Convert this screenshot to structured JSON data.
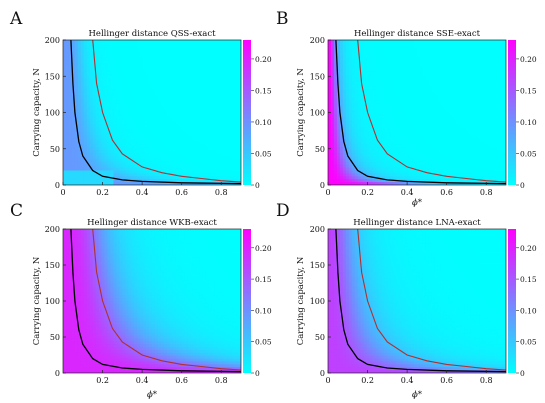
{
  "colorbar": {
    "ticks": [
      "0",
      "0.05",
      "0.10",
      "0.15",
      "0.20"
    ],
    "tick_values": [
      0,
      0.05,
      0.1,
      0.15,
      0.2
    ],
    "range": [
      0,
      0.23
    ],
    "color_low": "#00FFFF",
    "color_high": "#FF00FF"
  },
  "curve_colors": {
    "black": "#000000",
    "red": "#b03030"
  },
  "chart_data": [
    {
      "type": "heatmap",
      "panel": "A",
      "title": "Hellinger distance QSS-exact",
      "xlabel": "",
      "ylabel": "Carrying capacity, N",
      "xlim": [
        0,
        0.9
      ],
      "ylim": [
        0,
        200
      ],
      "xticks": [
        "0",
        "0.2",
        "0.4",
        "0.6",
        "0.8"
      ],
      "xtick_values": [
        0,
        0.2,
        0.4,
        0.6,
        0.8
      ],
      "yticks": [
        "0",
        "50",
        "100",
        "150",
        "200"
      ],
      "ytick_values": [
        0,
        50,
        100,
        150,
        200
      ],
      "curves": [
        {
          "color": "black",
          "x": [
            0.04,
            0.05,
            0.06,
            0.08,
            0.1,
            0.15,
            0.2,
            0.3,
            0.4,
            0.6,
            0.9
          ],
          "y": [
            200,
            140,
            100,
            60,
            40,
            20,
            12,
            7,
            5,
            3,
            2
          ]
        },
        {
          "color": "red",
          "x": [
            0.15,
            0.17,
            0.2,
            0.25,
            0.3,
            0.4,
            0.5,
            0.6,
            0.7,
            0.8,
            0.9
          ],
          "y": [
            200,
            140,
            100,
            62,
            43,
            25,
            17,
            12,
            9,
            6,
            4
          ]
        }
      ]
    },
    {
      "type": "heatmap",
      "panel": "B",
      "title": "Hellinger distance SSE-exact",
      "xlabel": "ϕ*",
      "ylabel": "Carrying capacity, N",
      "xlim": [
        0,
        0.9
      ],
      "ylim": [
        0,
        200
      ],
      "xticks": [
        "0",
        "0.2",
        "0.4",
        "0.6",
        "0.8"
      ],
      "xtick_values": [
        0,
        0.2,
        0.4,
        0.6,
        0.8
      ],
      "yticks": [
        "0",
        "50",
        "100",
        "150",
        "200"
      ],
      "ytick_values": [
        0,
        50,
        100,
        150,
        200
      ],
      "curves": [
        {
          "color": "black",
          "x": [
            0.04,
            0.05,
            0.06,
            0.08,
            0.1,
            0.15,
            0.2,
            0.3,
            0.4,
            0.6,
            0.9
          ],
          "y": [
            200,
            140,
            100,
            60,
            40,
            20,
            12,
            7,
            5,
            3,
            2
          ]
        },
        {
          "color": "red",
          "x": [
            0.15,
            0.17,
            0.2,
            0.25,
            0.3,
            0.4,
            0.5,
            0.6,
            0.7,
            0.8,
            0.9
          ],
          "y": [
            200,
            140,
            100,
            62,
            43,
            25,
            17,
            12,
            9,
            6,
            4
          ]
        }
      ]
    },
    {
      "type": "heatmap",
      "panel": "C",
      "title": "Hellinger distance WKB-exact",
      "xlabel": "ϕ*",
      "ylabel": "Carrying capacity, N",
      "xlim": [
        0,
        0.9
      ],
      "ylim": [
        0,
        200
      ],
      "xticks": [
        "0.2",
        "0.4",
        "0.6",
        "0.8"
      ],
      "xtick_values": [
        0.2,
        0.4,
        0.6,
        0.8
      ],
      "yticks": [
        "0",
        "50",
        "100",
        "150",
        "200"
      ],
      "ytick_values": [
        0,
        50,
        100,
        150,
        200
      ],
      "curves": [
        {
          "color": "black",
          "x": [
            0.04,
            0.05,
            0.06,
            0.08,
            0.1,
            0.15,
            0.2,
            0.3,
            0.4,
            0.6,
            0.9
          ],
          "y": [
            200,
            140,
            100,
            60,
            40,
            20,
            12,
            7,
            5,
            3,
            2
          ]
        },
        {
          "color": "red",
          "x": [
            0.15,
            0.17,
            0.2,
            0.25,
            0.3,
            0.4,
            0.5,
            0.6,
            0.7,
            0.8,
            0.9
          ],
          "y": [
            200,
            140,
            100,
            62,
            43,
            25,
            17,
            12,
            9,
            6,
            4
          ]
        }
      ]
    },
    {
      "type": "heatmap",
      "panel": "D",
      "title": "Hellinger distance LNA-exact",
      "xlabel": "ϕ*",
      "ylabel": "Carrying capacity, N",
      "xlim": [
        0,
        0.9
      ],
      "ylim": [
        0,
        200
      ],
      "xticks": [
        "0",
        "0.2",
        "0.4",
        "0.6",
        "0.8"
      ],
      "xtick_values": [
        0,
        0.2,
        0.4,
        0.6,
        0.8
      ],
      "yticks": [
        "0",
        "50",
        "100",
        "150",
        "200"
      ],
      "ytick_values": [
        0,
        50,
        100,
        150,
        200
      ],
      "curves": [
        {
          "color": "black",
          "x": [
            0.04,
            0.05,
            0.06,
            0.08,
            0.1,
            0.15,
            0.2,
            0.3,
            0.4,
            0.6,
            0.9
          ],
          "y": [
            200,
            140,
            100,
            60,
            40,
            20,
            12,
            7,
            5,
            3,
            2
          ]
        },
        {
          "color": "red",
          "x": [
            0.15,
            0.17,
            0.2,
            0.25,
            0.3,
            0.4,
            0.5,
            0.6,
            0.7,
            0.8,
            0.9
          ],
          "y": [
            200,
            140,
            100,
            62,
            43,
            25,
            17,
            12,
            9,
            6,
            4
          ]
        }
      ]
    }
  ]
}
